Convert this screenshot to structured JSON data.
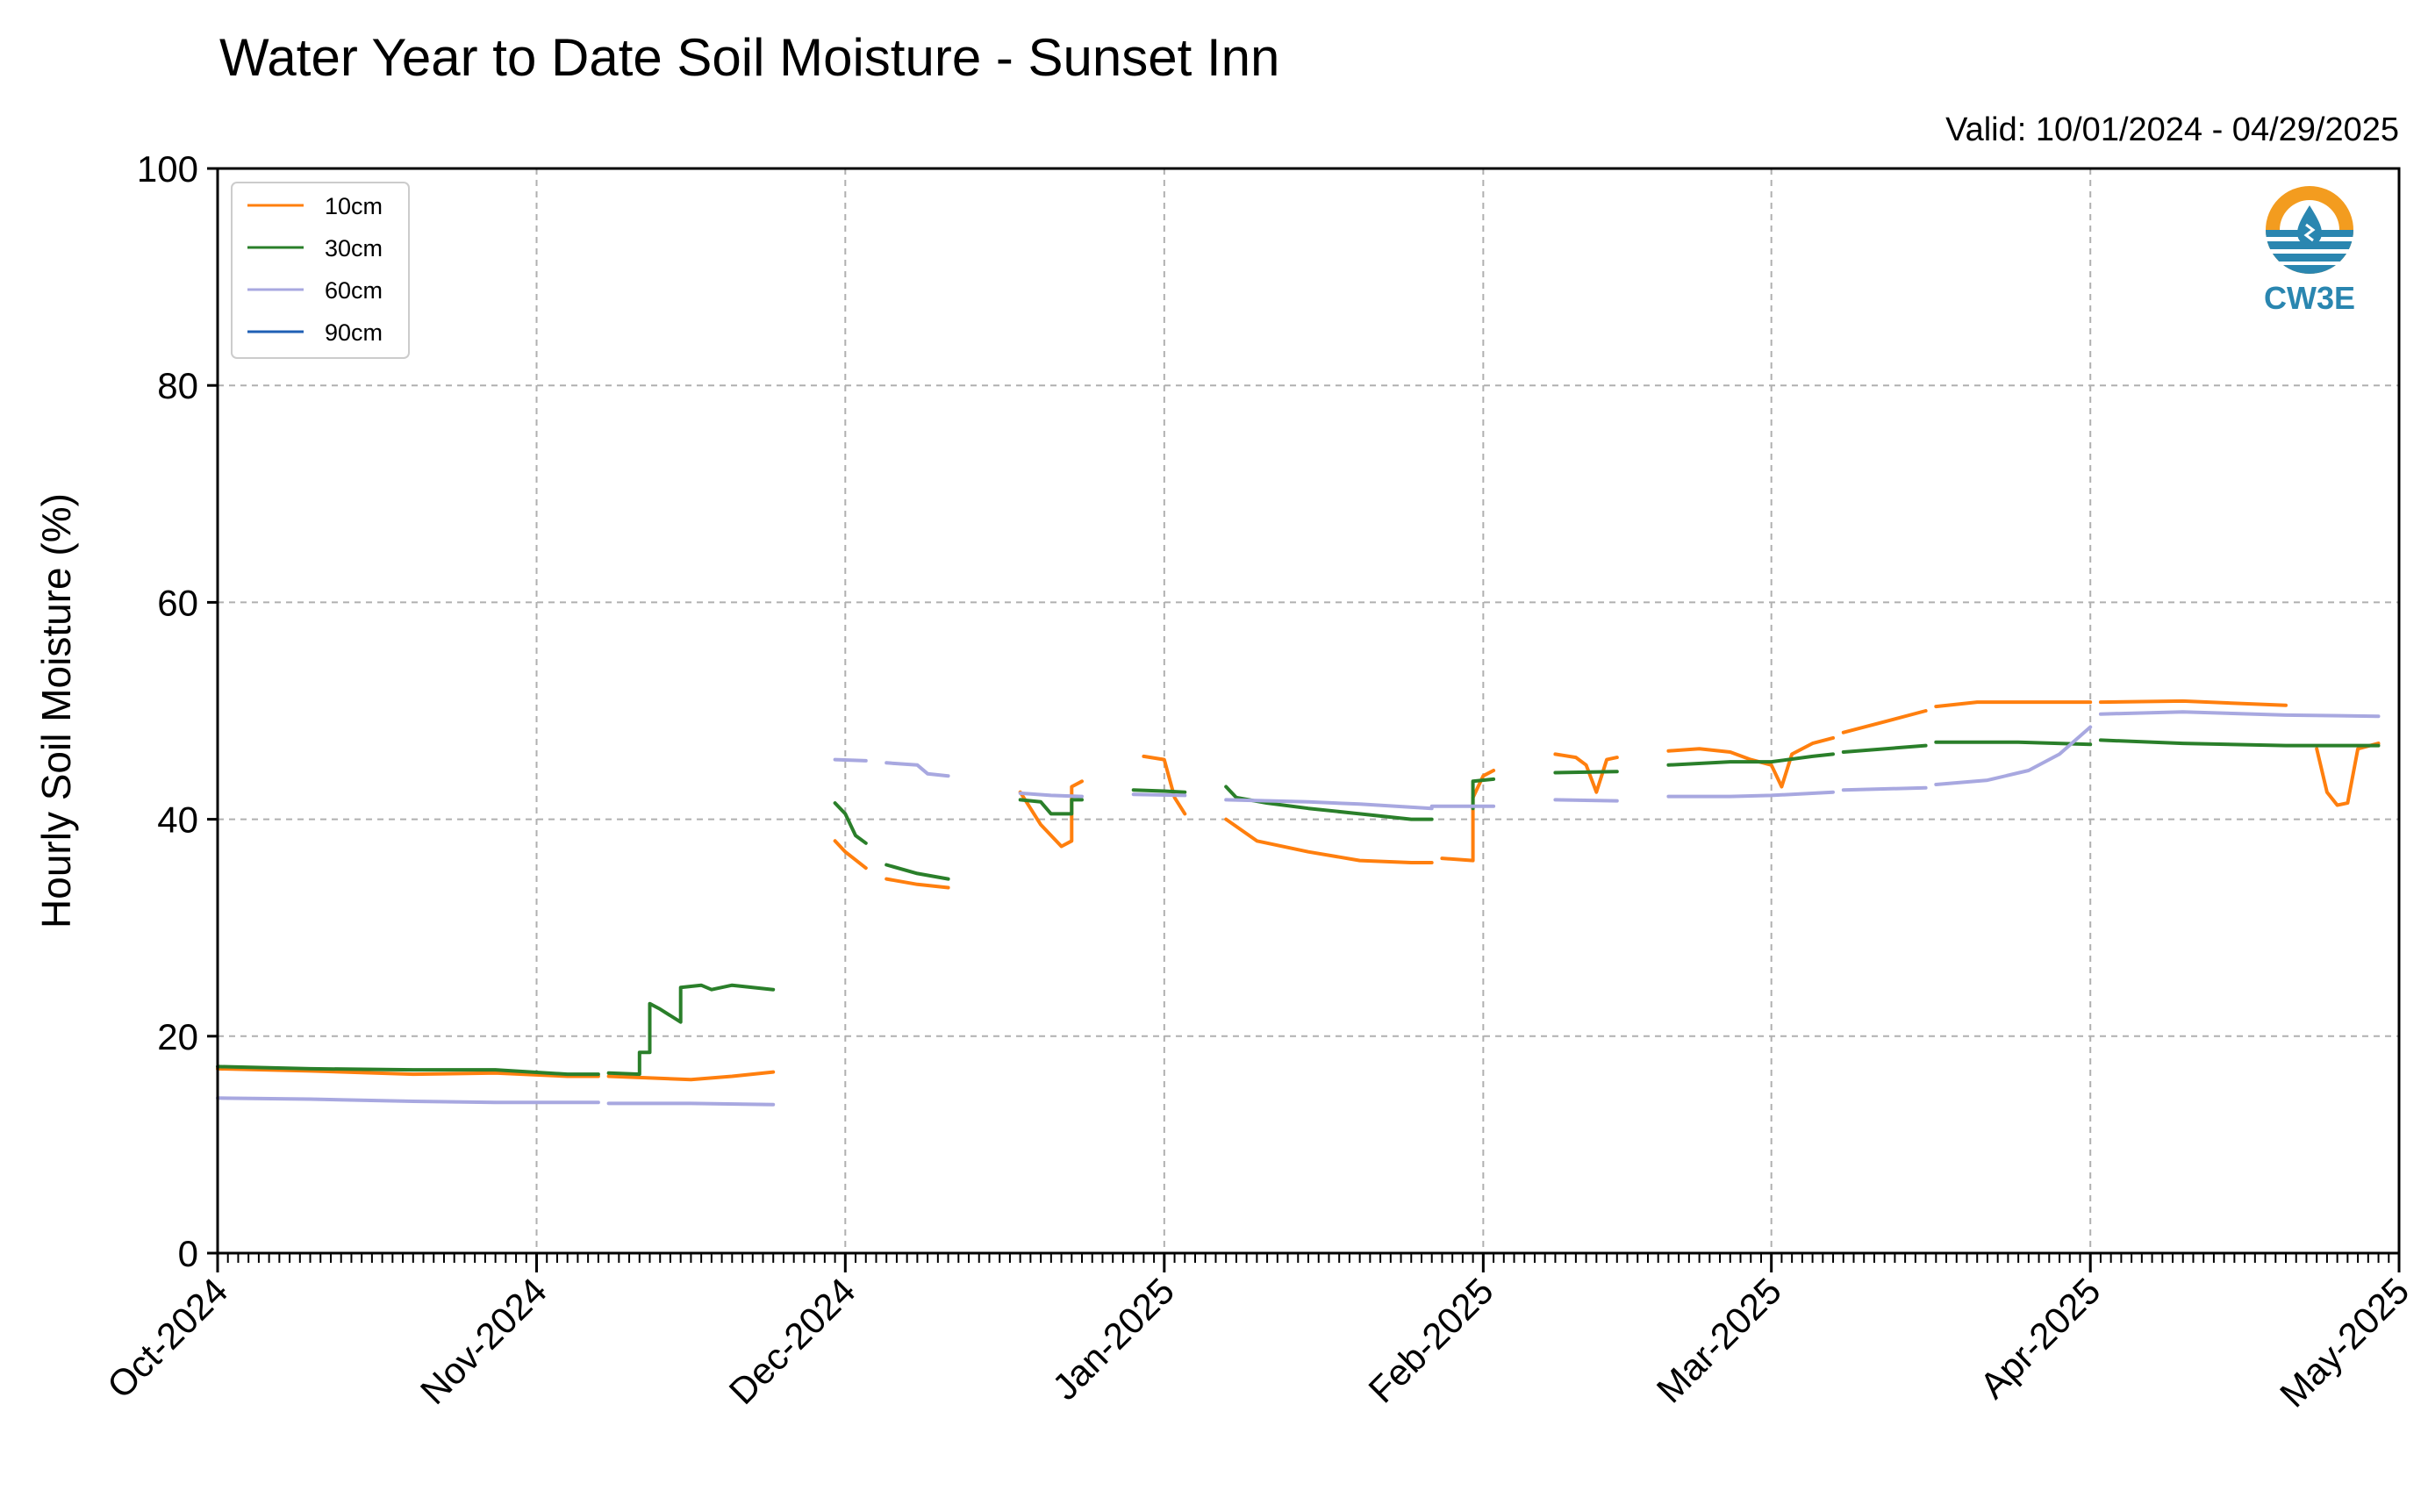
{
  "title": "Water Year to Date Soil Moisture - Sunset Inn",
  "valid_text": "Valid: 10/01/2024 - 04/29/2025",
  "logo_text": "CW3E",
  "colors": {
    "10cm": "#ff7f0e",
    "30cm": "#2a7f2a",
    "60cm": "#a8a8e0",
    "90cm": "#1f5fb4",
    "logo_orange": "#f39c1f",
    "logo_blue": "#2a86b0"
  },
  "chart_data": {
    "type": "line",
    "title": "Water Year to Date Soil Moisture - Sunset Inn",
    "xlabel": "",
    "ylabel": "Hourly Soil Moisture (%)",
    "ylim": [
      0,
      100
    ],
    "yticks": [
      0,
      20,
      40,
      60,
      80,
      100
    ],
    "xlim": [
      "2024-10-01",
      "2025-05-01"
    ],
    "x_tick_labels": [
      "Oct-2024",
      "Nov-2024",
      "Dec-2024",
      "Jan-2025",
      "Feb-2025",
      "Mar-2025",
      "Apr-2025",
      "May-2025"
    ],
    "x_tick_dates": [
      "2024-10-01",
      "2024-11-01",
      "2024-12-01",
      "2025-01-01",
      "2025-02-01",
      "2025-03-01",
      "2025-04-01",
      "2025-05-01"
    ],
    "grid": true,
    "legend_position": "top-left",
    "series": [
      {
        "name": "10cm",
        "segments": [
          [
            [
              "2024-10-01",
              17.0
            ],
            [
              "2024-10-10",
              16.8
            ],
            [
              "2024-10-20",
              16.5
            ],
            [
              "2024-10-28",
              16.6
            ],
            [
              "2024-11-04",
              16.3
            ],
            [
              "2024-11-07",
              16.3
            ]
          ],
          [
            [
              "2024-11-08",
              16.3
            ],
            [
              "2024-11-16",
              16.0
            ],
            [
              "2024-11-20",
              16.3
            ],
            [
              "2024-11-24",
              16.7
            ]
          ],
          [
            [
              "2024-11-30",
              38.0
            ],
            [
              "2024-12-01",
              37.0
            ],
            [
              "2024-12-03",
              35.5
            ]
          ],
          [
            [
              "2024-12-05",
              34.5
            ],
            [
              "2024-12-08",
              34.0
            ],
            [
              "2024-12-11",
              33.7
            ]
          ],
          [
            [
              "2024-12-18",
              42.5
            ],
            [
              "2024-12-20",
              39.5
            ],
            [
              "2024-12-22",
              37.5
            ],
            [
              "2024-12-23",
              38.0
            ],
            [
              "2024-12-23",
              43.0
            ],
            [
              "2024-12-24",
              43.5
            ]
          ],
          [
            [
              "2024-12-30",
              45.8
            ],
            [
              "2025-01-01",
              45.5
            ],
            [
              "2025-01-02",
              42.0
            ],
            [
              "2025-01-03",
              40.5
            ]
          ],
          [
            [
              "2025-01-07",
              40.0
            ],
            [
              "2025-01-10",
              38.0
            ],
            [
              "2025-01-15",
              37.0
            ],
            [
              "2025-01-20",
              36.2
            ],
            [
              "2025-01-25",
              36.0
            ],
            [
              "2025-01-27",
              36.0
            ]
          ],
          [
            [
              "2025-01-28",
              36.4
            ],
            [
              "2025-01-31",
              36.2
            ],
            [
              "2025-01-31",
              42.0
            ],
            [
              "2025-02-01",
              44.0
            ],
            [
              "2025-02-02",
              44.5
            ]
          ],
          [
            [
              "2025-02-08",
              46.0
            ],
            [
              "2025-02-10",
              45.7
            ],
            [
              "2025-02-11",
              45.0
            ],
            [
              "2025-02-12",
              42.5
            ],
            [
              "2025-02-13",
              45.5
            ],
            [
              "2025-02-14",
              45.7
            ]
          ],
          [
            [
              "2025-02-19",
              46.3
            ],
            [
              "2025-02-22",
              46.5
            ],
            [
              "2025-02-25",
              46.2
            ],
            [
              "2025-02-27",
              45.5
            ],
            [
              "2025-03-01",
              45.0
            ],
            [
              "2025-03-02",
              43.0
            ],
            [
              "2025-03-03",
              46.0
            ],
            [
              "2025-03-05",
              47.0
            ],
            [
              "2025-03-07",
              47.5
            ]
          ],
          [
            [
              "2025-03-08",
              48.0
            ],
            [
              "2025-03-12",
              49.0
            ],
            [
              "2025-03-16",
              50.0
            ]
          ],
          [
            [
              "2025-03-17",
              50.4
            ],
            [
              "2025-03-21",
              50.8
            ],
            [
              "2025-03-25",
              50.8
            ],
            [
              "2025-04-01",
              50.8
            ]
          ],
          [
            [
              "2025-04-02",
              50.8
            ],
            [
              "2025-04-10",
              50.9
            ],
            [
              "2025-04-20",
              50.5
            ]
          ],
          [
            [
              "2025-04-23",
              46.5
            ],
            [
              "2025-04-24",
              42.5
            ],
            [
              "2025-04-25",
              41.3
            ],
            [
              "2025-04-26",
              41.5
            ],
            [
              "2025-04-27",
              46.5
            ],
            [
              "2025-04-29",
              47.0
            ]
          ]
        ]
      },
      {
        "name": "30cm",
        "segments": [
          [
            [
              "2024-10-01",
              17.2
            ],
            [
              "2024-10-10",
              17.0
            ],
            [
              "2024-10-20",
              16.9
            ],
            [
              "2024-10-28",
              16.9
            ],
            [
              "2024-11-04",
              16.5
            ],
            [
              "2024-11-07",
              16.5
            ]
          ],
          [
            [
              "2024-11-08",
              16.6
            ],
            [
              "2024-11-11",
              16.5
            ],
            [
              "2024-11-11",
              18.5
            ],
            [
              "2024-11-12",
              18.5
            ],
            [
              "2024-11-12",
              23.0
            ],
            [
              "2024-11-13",
              22.5
            ],
            [
              "2024-11-15",
              21.3
            ],
            [
              "2024-11-15",
              24.5
            ],
            [
              "2024-11-17",
              24.7
            ],
            [
              "2024-11-18",
              24.3
            ],
            [
              "2024-11-20",
              24.7
            ],
            [
              "2024-11-24",
              24.3
            ]
          ],
          [
            [
              "2024-11-30",
              41.5
            ],
            [
              "2024-12-01",
              40.5
            ],
            [
              "2024-12-02",
              38.5
            ],
            [
              "2024-12-03",
              37.8
            ]
          ],
          [
            [
              "2024-12-05",
              35.8
            ],
            [
              "2024-12-08",
              35.0
            ],
            [
              "2024-12-11",
              34.5
            ]
          ],
          [
            [
              "2024-12-18",
              41.8
            ],
            [
              "2024-12-20",
              41.6
            ],
            [
              "2024-12-21",
              40.5
            ],
            [
              "2024-12-23",
              40.5
            ],
            [
              "2024-12-23",
              41.8
            ],
            [
              "2024-12-24",
              41.8
            ]
          ],
          [
            [
              "2024-12-29",
              42.7
            ],
            [
              "2025-01-01",
              42.6
            ],
            [
              "2025-01-03",
              42.5
            ]
          ],
          [
            [
              "2025-01-07",
              43.0
            ],
            [
              "2025-01-08",
              42.0
            ],
            [
              "2025-01-11",
              41.5
            ],
            [
              "2025-01-15",
              41.0
            ],
            [
              "2025-01-20",
              40.5
            ],
            [
              "2025-01-25",
              40.0
            ],
            [
              "2025-01-27",
              40.0
            ]
          ],
          [
            [
              "2025-01-31",
              41.0
            ],
            [
              "2025-01-31",
              43.5
            ],
            [
              "2025-02-02",
              43.7
            ]
          ],
          [
            [
              "2025-02-08",
              44.3
            ],
            [
              "2025-02-14",
              44.4
            ]
          ],
          [
            [
              "2025-02-19",
              45.0
            ],
            [
              "2025-02-25",
              45.3
            ],
            [
              "2025-03-01",
              45.3
            ],
            [
              "2025-03-05",
              45.8
            ],
            [
              "2025-03-07",
              46.0
            ]
          ],
          [
            [
              "2025-03-08",
              46.2
            ],
            [
              "2025-03-16",
              46.8
            ]
          ],
          [
            [
              "2025-03-17",
              47.1
            ],
            [
              "2025-03-25",
              47.1
            ],
            [
              "2025-04-01",
              46.9
            ]
          ],
          [
            [
              "2025-04-02",
              47.3
            ],
            [
              "2025-04-10",
              47.0
            ],
            [
              "2025-04-20",
              46.8
            ],
            [
              "2025-04-29",
              46.8
            ]
          ]
        ]
      },
      {
        "name": "60cm",
        "segments": [
          [
            [
              "2024-10-01",
              14.3
            ],
            [
              "2024-10-10",
              14.2
            ],
            [
              "2024-10-20",
              14.0
            ],
            [
              "2024-10-28",
              13.9
            ],
            [
              "2024-11-04",
              13.9
            ],
            [
              "2024-11-07",
              13.9
            ]
          ],
          [
            [
              "2024-11-08",
              13.8
            ],
            [
              "2024-11-16",
              13.8
            ],
            [
              "2024-11-24",
              13.7
            ]
          ],
          [
            [
              "2024-11-30",
              45.5
            ],
            [
              "2024-12-03",
              45.4
            ]
          ],
          [
            [
              "2024-12-05",
              45.2
            ],
            [
              "2024-12-08",
              45.0
            ],
            [
              "2024-12-09",
              44.2
            ],
            [
              "2024-12-11",
              44.0
            ]
          ],
          [
            [
              "2024-12-18",
              42.4
            ],
            [
              "2024-12-21",
              42.2
            ],
            [
              "2024-12-24",
              42.1
            ]
          ],
          [
            [
              "2024-12-29",
              42.3
            ],
            [
              "2025-01-03",
              42.2
            ]
          ],
          [
            [
              "2025-01-07",
              41.8
            ],
            [
              "2025-01-15",
              41.6
            ],
            [
              "2025-01-20",
              41.4
            ],
            [
              "2025-01-27",
              41.0
            ]
          ],
          [
            [
              "2025-01-27",
              41.2
            ],
            [
              "2025-02-02",
              41.2
            ]
          ],
          [
            [
              "2025-02-08",
              41.8
            ],
            [
              "2025-02-14",
              41.7
            ]
          ],
          [
            [
              "2025-02-19",
              42.1
            ],
            [
              "2025-02-25",
              42.1
            ],
            [
              "2025-03-01",
              42.2
            ],
            [
              "2025-03-07",
              42.5
            ]
          ],
          [
            [
              "2025-03-08",
              42.7
            ],
            [
              "2025-03-16",
              42.9
            ]
          ],
          [
            [
              "2025-03-17",
              43.2
            ],
            [
              "2025-03-22",
              43.6
            ],
            [
              "2025-03-26",
              44.5
            ],
            [
              "2025-03-29",
              46.0
            ],
            [
              "2025-04-01",
              48.5
            ]
          ],
          [
            [
              "2025-04-02",
              49.7
            ],
            [
              "2025-04-10",
              49.9
            ],
            [
              "2025-04-20",
              49.6
            ],
            [
              "2025-04-29",
              49.5
            ]
          ]
        ]
      },
      {
        "name": "90cm",
        "segments": []
      }
    ]
  }
}
